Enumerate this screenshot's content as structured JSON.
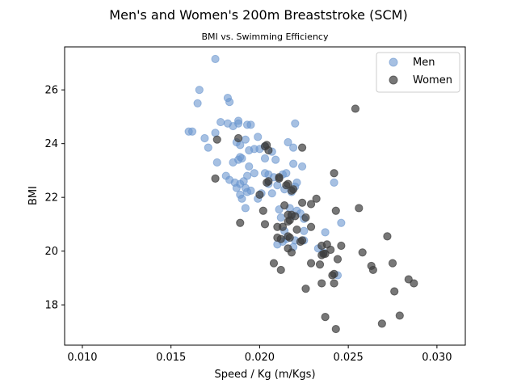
{
  "chart_data": {
    "type": "scatter",
    "title": "Men's and Women's 200m Breaststroke (SCM)",
    "subtitle": "BMI vs. Swimming Efficiency",
    "xlabel": "Speed / Kg (m/Kgs)",
    "ylabel": "BMI",
    "xlim": [
      0.009,
      0.0316
    ],
    "ylim": [
      16.5,
      27.6
    ],
    "xticks": [
      0.01,
      0.015,
      0.02,
      0.025,
      0.03
    ],
    "xtick_labels": [
      "0.010",
      "0.015",
      "0.020",
      "0.025",
      "0.030"
    ],
    "yticks": [
      18,
      20,
      22,
      24,
      26
    ],
    "ytick_labels": [
      "18",
      "20",
      "22",
      "24",
      "26"
    ],
    "grid": false,
    "legend_position": "top-right",
    "series": [
      {
        "name": "Men",
        "color": "#6a96cf",
        "points": [
          [
            0.0175,
            27.15
          ],
          [
            0.0166,
            26.0
          ],
          [
            0.0165,
            25.5
          ],
          [
            0.0182,
            25.7
          ],
          [
            0.0183,
            25.55
          ],
          [
            0.016,
            24.45
          ],
          [
            0.0162,
            24.45
          ],
          [
            0.0178,
            24.8
          ],
          [
            0.0182,
            24.75
          ],
          [
            0.0185,
            24.65
          ],
          [
            0.0188,
            24.75
          ],
          [
            0.0188,
            24.85
          ],
          [
            0.0193,
            24.7
          ],
          [
            0.0195,
            24.7
          ],
          [
            0.022,
            24.75
          ],
          [
            0.0169,
            24.2
          ],
          [
            0.0175,
            24.4
          ],
          [
            0.0187,
            24.05
          ],
          [
            0.0192,
            24.15
          ],
          [
            0.0199,
            24.25
          ],
          [
            0.0171,
            23.85
          ],
          [
            0.0189,
            23.95
          ],
          [
            0.0194,
            23.75
          ],
          [
            0.0197,
            23.8
          ],
          [
            0.02,
            23.8
          ],
          [
            0.0203,
            23.9
          ],
          [
            0.0207,
            23.7
          ],
          [
            0.0216,
            24.05
          ],
          [
            0.0219,
            23.85
          ],
          [
            0.0176,
            23.3
          ],
          [
            0.0185,
            23.3
          ],
          [
            0.0188,
            23.4
          ],
          [
            0.0189,
            23.5
          ],
          [
            0.019,
            23.45
          ],
          [
            0.0194,
            23.15
          ],
          [
            0.0203,
            23.45
          ],
          [
            0.0209,
            23.4
          ],
          [
            0.0219,
            23.25
          ],
          [
            0.0224,
            23.15
          ],
          [
            0.0181,
            22.8
          ],
          [
            0.0183,
            22.65
          ],
          [
            0.0186,
            22.55
          ],
          [
            0.0189,
            22.5
          ],
          [
            0.0191,
            22.6
          ],
          [
            0.0193,
            22.8
          ],
          [
            0.0197,
            22.9
          ],
          [
            0.0203,
            22.9
          ],
          [
            0.0205,
            22.85
          ],
          [
            0.0208,
            22.75
          ],
          [
            0.0213,
            22.85
          ],
          [
            0.0215,
            22.9
          ],
          [
            0.0221,
            22.55
          ],
          [
            0.0242,
            22.55
          ],
          [
            0.0187,
            22.35
          ],
          [
            0.0189,
            22.1
          ],
          [
            0.0192,
            22.35
          ],
          [
            0.0193,
            22.2
          ],
          [
            0.0195,
            22.25
          ],
          [
            0.0199,
            21.95
          ],
          [
            0.0201,
            22.15
          ],
          [
            0.0205,
            22.5
          ],
          [
            0.0207,
            22.15
          ],
          [
            0.021,
            22.45
          ],
          [
            0.0214,
            22.3
          ],
          [
            0.0218,
            22.2
          ],
          [
            0.022,
            22.4
          ],
          [
            0.019,
            21.95
          ],
          [
            0.0192,
            21.6
          ],
          [
            0.0211,
            21.55
          ],
          [
            0.0217,
            21.6
          ],
          [
            0.0221,
            21.5
          ],
          [
            0.0223,
            21.4
          ],
          [
            0.0212,
            21.25
          ],
          [
            0.0218,
            21.3
          ],
          [
            0.0225,
            21.2
          ],
          [
            0.0246,
            21.05
          ],
          [
            0.0214,
            20.75
          ],
          [
            0.0225,
            20.75
          ],
          [
            0.0237,
            20.7
          ],
          [
            0.0215,
            20.45
          ],
          [
            0.022,
            20.4
          ],
          [
            0.0225,
            20.4
          ],
          [
            0.021,
            20.25
          ],
          [
            0.0213,
            20.35
          ],
          [
            0.0219,
            20.15
          ],
          [
            0.0233,
            20.1
          ],
          [
            0.0236,
            19.95
          ],
          [
            0.0244,
            19.1
          ]
        ]
      },
      {
        "name": "Women",
        "color": "#3d3d3d",
        "points": [
          [
            0.0254,
            25.3
          ],
          [
            0.0188,
            24.2
          ],
          [
            0.0176,
            24.15
          ],
          [
            0.0204,
            23.95
          ],
          [
            0.0203,
            23.9
          ],
          [
            0.0205,
            23.75
          ],
          [
            0.0224,
            23.85
          ],
          [
            0.0242,
            22.9
          ],
          [
            0.0175,
            22.7
          ],
          [
            0.0211,
            22.75
          ],
          [
            0.0211,
            22.7
          ],
          [
            0.0204,
            22.55
          ],
          [
            0.0205,
            22.6
          ],
          [
            0.0215,
            22.45
          ],
          [
            0.0216,
            22.5
          ],
          [
            0.0218,
            22.25
          ],
          [
            0.02,
            22.1
          ],
          [
            0.0219,
            22.3
          ],
          [
            0.0232,
            21.95
          ],
          [
            0.0214,
            21.7
          ],
          [
            0.0224,
            21.8
          ],
          [
            0.0229,
            21.75
          ],
          [
            0.0202,
            21.5
          ],
          [
            0.0216,
            21.35
          ],
          [
            0.0218,
            21.35
          ],
          [
            0.022,
            21.3
          ],
          [
            0.0226,
            21.25
          ],
          [
            0.0243,
            21.5
          ],
          [
            0.0256,
            21.6
          ],
          [
            0.0189,
            21.05
          ],
          [
            0.0203,
            21.0
          ],
          [
            0.0216,
            21.1
          ],
          [
            0.0217,
            21.15
          ],
          [
            0.0221,
            20.8
          ],
          [
            0.0229,
            20.9
          ],
          [
            0.021,
            20.9
          ],
          [
            0.0213,
            20.9
          ],
          [
            0.021,
            20.5
          ],
          [
            0.0212,
            20.45
          ],
          [
            0.0216,
            20.55
          ],
          [
            0.0217,
            20.5
          ],
          [
            0.0223,
            20.35
          ],
          [
            0.0224,
            20.4
          ],
          [
            0.0235,
            20.2
          ],
          [
            0.0238,
            20.25
          ],
          [
            0.0246,
            20.2
          ],
          [
            0.0216,
            20.1
          ],
          [
            0.0218,
            19.95
          ],
          [
            0.0236,
            19.9
          ],
          [
            0.0235,
            19.85
          ],
          [
            0.0237,
            19.9
          ],
          [
            0.024,
            20.05
          ],
          [
            0.0244,
            19.7
          ],
          [
            0.0258,
            19.95
          ],
          [
            0.0272,
            20.55
          ],
          [
            0.0208,
            19.55
          ],
          [
            0.0212,
            19.3
          ],
          [
            0.0229,
            19.55
          ],
          [
            0.0234,
            19.5
          ],
          [
            0.0241,
            19.1
          ],
          [
            0.0242,
            19.15
          ],
          [
            0.0263,
            19.45
          ],
          [
            0.0264,
            19.3
          ],
          [
            0.0275,
            19.55
          ],
          [
            0.0284,
            18.95
          ],
          [
            0.0226,
            18.6
          ],
          [
            0.0235,
            18.8
          ],
          [
            0.0242,
            18.8
          ],
          [
            0.0276,
            18.5
          ],
          [
            0.0287,
            18.8
          ],
          [
            0.0237,
            17.55
          ],
          [
            0.0279,
            17.6
          ],
          [
            0.0269,
            17.3
          ],
          [
            0.0243,
            17.1
          ]
        ]
      }
    ]
  }
}
